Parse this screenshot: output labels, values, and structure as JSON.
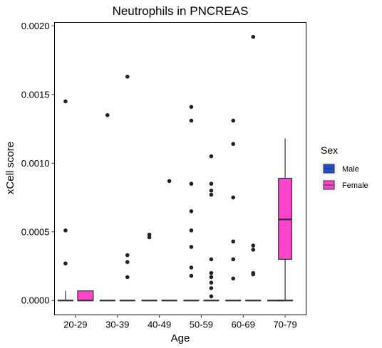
{
  "chart_data": {
    "type": "boxplot",
    "title": "Neutrophils in PNCREAS",
    "xlabel": "Age",
    "ylabel": "xCell score",
    "categories": [
      "20-29",
      "30-39",
      "40-49",
      "50-59",
      "60-69",
      "70-79"
    ],
    "ylim": [
      -0.000105,
      0.002025
    ],
    "yticks": [
      0.0,
      0.0005,
      0.001,
      0.0015,
      0.002
    ],
    "ytick_labels": [
      "0.0000",
      "0.0005",
      "0.0010",
      "0.0015",
      "0.0020"
    ],
    "grid": false,
    "legend": {
      "title": "Sex",
      "position": "right",
      "entries": [
        {
          "name": "Male",
          "color": "#1a4fd6"
        },
        {
          "name": "Female",
          "color": "#ff44cc"
        }
      ]
    },
    "series": [
      {
        "name": "Male",
        "color": "#1a4fd6",
        "boxes": [
          {
            "q1": 0,
            "median": 0,
            "q3": 0,
            "whisker_low": 0,
            "whisker_high": 7e-05,
            "outliers": [
              0.00145,
              0.00051,
              0.00027
            ]
          },
          {
            "q1": 0,
            "median": 0,
            "q3": 0,
            "whisker_low": 0,
            "whisker_high": 0,
            "outliers": [
              0.00135
            ]
          },
          {
            "q1": 0,
            "median": 0,
            "q3": 0,
            "whisker_low": 0,
            "whisker_high": 0,
            "outliers": [
              0.00048,
              0.00046
            ]
          },
          {
            "q1": 0,
            "median": 0,
            "q3": 0,
            "whisker_low": 0,
            "whisker_high": 0,
            "outliers": [
              0.00141,
              0.00131,
              0.00085,
              0.00065,
              0.00051,
              0.00039,
              0.00024,
              0.00018
            ]
          },
          {
            "q1": 0,
            "median": 0,
            "q3": 0,
            "whisker_low": 0,
            "whisker_high": 0,
            "outliers": [
              0.00131,
              0.00114,
              0.00075,
              0.00043,
              0.0003,
              0.00016
            ]
          },
          {
            "q1": 0,
            "median": 0,
            "q3": 0,
            "whisker_low": 0,
            "whisker_high": 0,
            "outliers": []
          }
        ]
      },
      {
        "name": "Female",
        "color": "#ff44cc",
        "boxes": [
          {
            "q1": 0,
            "median": 0,
            "q3": 7e-05,
            "whisker_low": 0,
            "whisker_high": 7e-05,
            "outliers": []
          },
          {
            "q1": 0,
            "median": 0,
            "q3": 0,
            "whisker_low": 0,
            "whisker_high": 0,
            "outliers": [
              0.00163,
              0.00033,
              0.00028,
              0.00017
            ]
          },
          {
            "q1": 0,
            "median": 0,
            "q3": 0,
            "whisker_low": 0,
            "whisker_high": 0,
            "outliers": [
              0.00087
            ]
          },
          {
            "q1": 0,
            "median": 0,
            "q3": 0,
            "whisker_low": 0,
            "whisker_high": 0,
            "outliers": [
              0.00105,
              0.00085,
              0.0008,
              0.00077,
              0.0003,
              0.0002,
              0.00017,
              0.00013,
              9e-05,
              3e-05
            ]
          },
          {
            "q1": 0,
            "median": 0,
            "q3": 0,
            "whisker_low": 0,
            "whisker_high": 0,
            "outliers": [
              0.00192,
              0.0004,
              0.00037,
              0.0002,
              0.00019
            ]
          },
          {
            "q1": 0,
            "median": 0,
            "q3": 0,
            "whisker_low": 0,
            "whisker_high": 0,
            "outliers": []
          }
        ]
      }
    ],
    "single_boxes": [
      {
        "category_index": 5,
        "series": "Female",
        "q1": 0.0003,
        "median": 0.00059,
        "q3": 0.00089,
        "whisker_low": 0,
        "whisker_high": 0.00118
      }
    ]
  }
}
